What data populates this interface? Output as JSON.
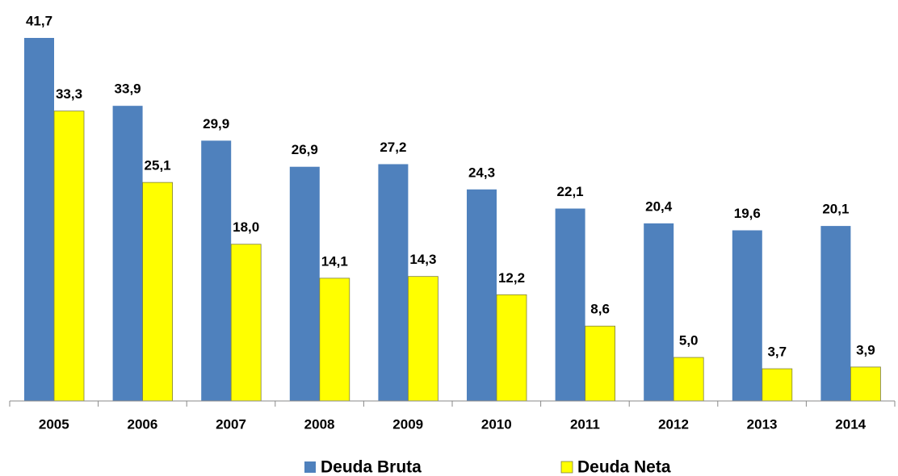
{
  "chart_data": {
    "type": "bar",
    "categories": [
      "2005",
      "2006",
      "2007",
      "2008",
      "2009",
      "2010",
      "2011",
      "2012",
      "2013",
      "2014"
    ],
    "series": [
      {
        "name": "Deuda Bruta",
        "color": "#4f81bd",
        "values": [
          41.7,
          33.9,
          29.9,
          26.9,
          27.2,
          24.3,
          22.1,
          20.4,
          19.6,
          20.1
        ],
        "value_labels": [
          "41,7",
          "33,9",
          "29,9",
          "26,9",
          "27,2",
          "24,3",
          "22,1",
          "20,4",
          "19,6",
          "20,1"
        ]
      },
      {
        "name": "Deuda Neta",
        "color": "#ffff00",
        "values": [
          33.3,
          25.1,
          18.0,
          14.1,
          14.3,
          12.2,
          8.6,
          5.0,
          3.7,
          3.9
        ],
        "value_labels": [
          "33,3",
          "25,1",
          "18,0",
          "14,1",
          "14,3",
          "12,2",
          "8,6",
          "5,0",
          "3,7",
          "3,9"
        ]
      }
    ],
    "legend": "bottom"
  }
}
